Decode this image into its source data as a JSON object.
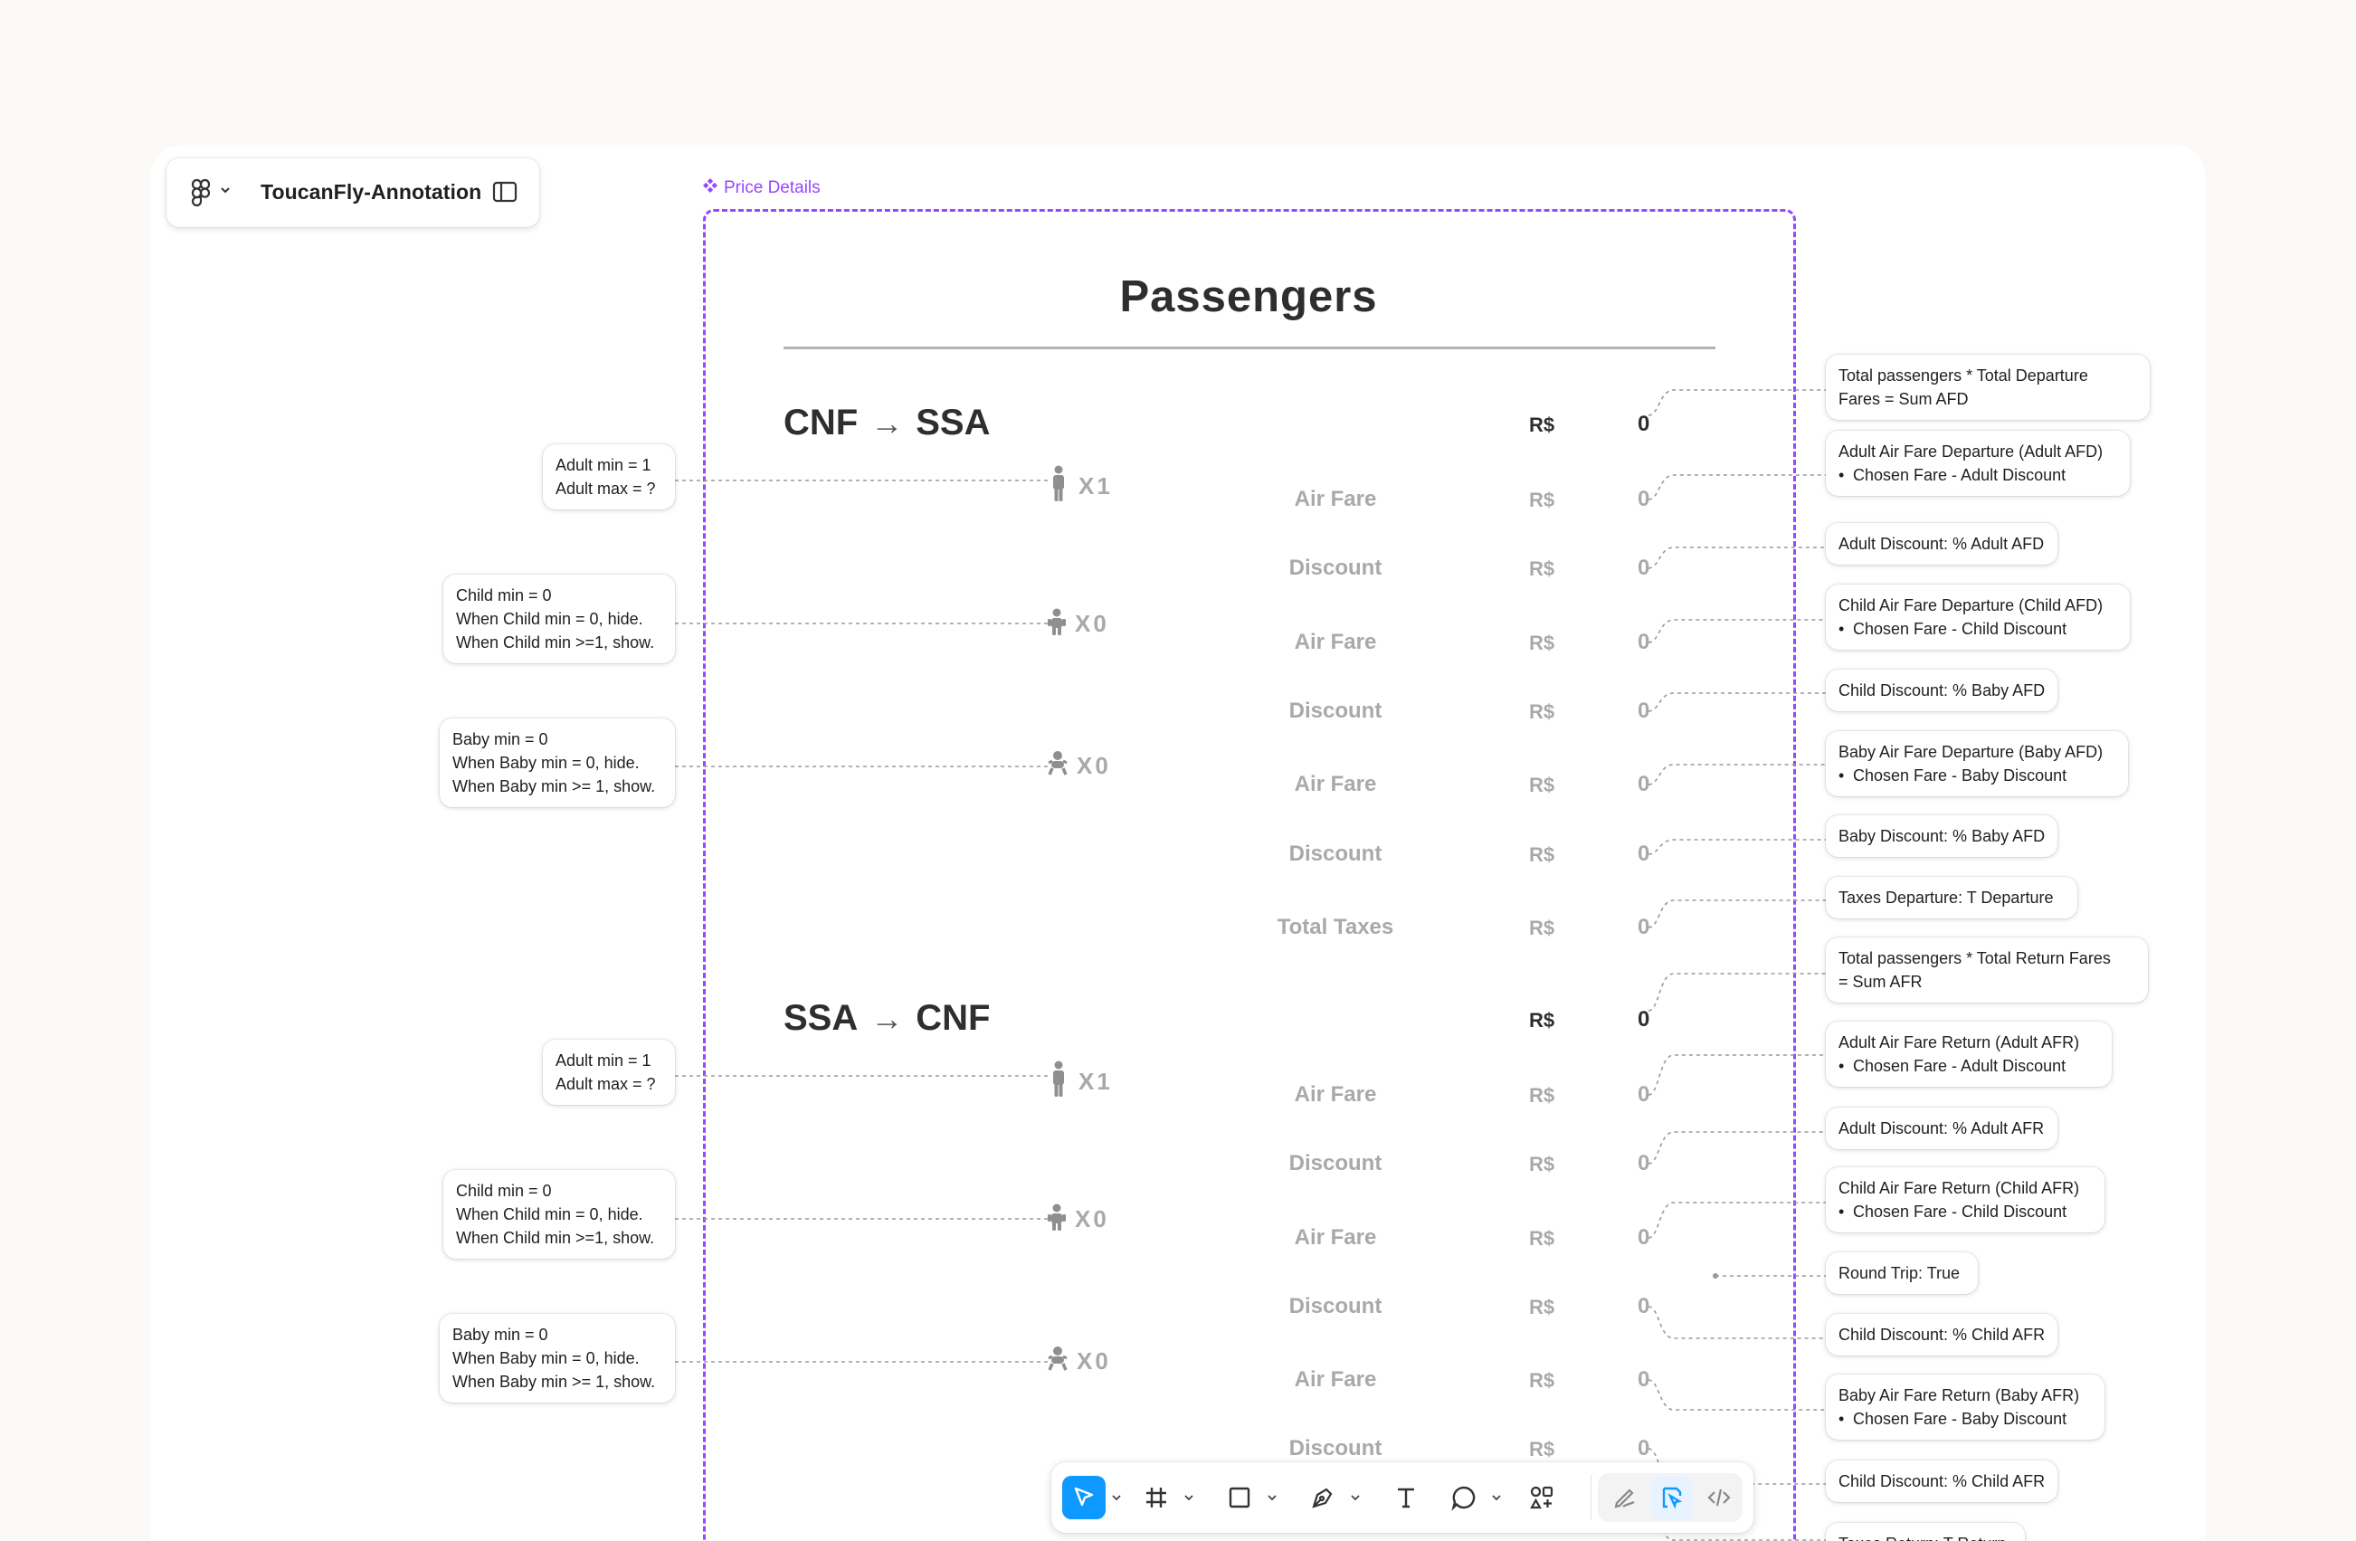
{
  "file": {
    "name": "ToucanFly-Annotation"
  },
  "frame": {
    "label": "Price Details"
  },
  "page": {
    "title": "Passengers"
  },
  "currency": "R$",
  "routes": [
    {
      "from": "CNF",
      "arrow": "→",
      "to": "SSA",
      "total": "0",
      "rows": [
        {
          "label": "Air Fare",
          "value": "0",
          "pax": "adult",
          "count": "1"
        },
        {
          "label": "Discount",
          "value": "0"
        },
        {
          "label": "Air Fare",
          "value": "0",
          "pax": "child",
          "count": "0"
        },
        {
          "label": "Discount",
          "value": "0"
        },
        {
          "label": "Air Fare",
          "value": "0",
          "pax": "baby",
          "count": "0"
        },
        {
          "label": "Discount",
          "value": "0"
        },
        {
          "label": "Total Taxes",
          "value": "0"
        }
      ]
    },
    {
      "from": "SSA",
      "arrow": "→",
      "to": "CNF",
      "total": "0",
      "rows": [
        {
          "label": "Air Fare",
          "value": "0",
          "pax": "adult",
          "count": "1"
        },
        {
          "label": "Discount",
          "value": "0"
        },
        {
          "label": "Air Fare",
          "value": "0",
          "pax": "child",
          "count": "0"
        },
        {
          "label": "Discount",
          "value": "0"
        },
        {
          "label": "Air Fare",
          "value": "0",
          "pax": "baby",
          "count": "0"
        },
        {
          "label": "Discount",
          "value": "0"
        }
      ]
    }
  ],
  "mult_symbol": "X",
  "left_notes": [
    {
      "lines": [
        "Adult min = 1",
        "Adult max = ?"
      ]
    },
    {
      "lines": [
        "Child min = 0",
        "When Child min = 0, hide.",
        "When Child min >=1, show."
      ]
    },
    {
      "lines": [
        "Baby min = 0",
        "When Baby min = 0, hide.",
        "When Baby min >= 1, show."
      ]
    },
    {
      "lines": [
        "Adult min = 1",
        "Adult max = ?"
      ]
    },
    {
      "lines": [
        "Child min = 0",
        "When Child min = 0, hide.",
        "When Child min >=1, show."
      ]
    },
    {
      "lines": [
        "Baby min = 0",
        "When Baby min = 0, hide.",
        "When Baby min >= 1, show."
      ]
    }
  ],
  "right_notes": [
    {
      "lines": [
        "Total passengers * Total Departure",
        "Fares = Sum AFD"
      ]
    },
    {
      "lines": [
        "Adult Air Fare Departure (Adult AFD)"
      ],
      "bullet": "Chosen Fare - Adult Discount"
    },
    {
      "lines": [
        "Adult Discount: % Adult AFD"
      ]
    },
    {
      "lines": [
        "Child Air Fare Departure (Child AFD)"
      ],
      "bullet": "Chosen Fare - Child Discount"
    },
    {
      "lines": [
        "Child Discount: % Baby AFD"
      ]
    },
    {
      "lines": [
        "Baby Air Fare Departure (Baby AFD)"
      ],
      "bullet": "Chosen Fare - Baby Discount"
    },
    {
      "lines": [
        "Baby Discount: % Baby AFD"
      ]
    },
    {
      "lines": [
        "Taxes Departure: T Departure"
      ]
    },
    {
      "lines": [
        "Total passengers * Total Return Fares",
        "= Sum AFR"
      ]
    },
    {
      "lines": [
        "Adult Air Fare Return (Adult AFR)"
      ],
      "bullet": "Chosen Fare - Adult Discount"
    },
    {
      "lines": [
        "Adult Discount: % Adult AFR"
      ]
    },
    {
      "lines": [
        "Child Air Fare Return (Child AFR)"
      ],
      "bullet": "Chosen Fare - Child Discount"
    },
    {
      "lines": [
        "Round Trip: True"
      ]
    },
    {
      "lines": [
        "Child Discount: % Child AFR"
      ]
    },
    {
      "lines": [
        "Baby Air Fare Return (Baby AFR)"
      ],
      "bullet": "Chosen Fare - Baby Discount"
    },
    {
      "lines": [
        "Child Discount: % Child AFR"
      ]
    },
    {
      "lines": [
        "Taxes Return: T Return"
      ]
    }
  ],
  "toolbar": {
    "tools": [
      "move-tool",
      "frame-tool",
      "shape-tool",
      "pen-tool",
      "text-tool",
      "comment-tool",
      "actions-tool"
    ],
    "modes": [
      "draw-mode",
      "design-mode",
      "dev-mode"
    ],
    "active_tool": "move-tool",
    "accent": "#0d99ff"
  },
  "colors": {
    "frame": "#9747ff",
    "canvas": "#ffffff",
    "background": "#fcfaf6"
  }
}
